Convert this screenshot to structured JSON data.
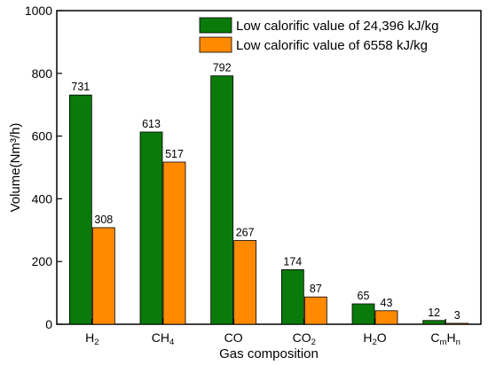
{
  "chart_data": {
    "type": "bar",
    "title": "",
    "xlabel": "Gas composition",
    "ylabel": "Volume(Nm³/h)",
    "ylim": [
      0,
      1000
    ],
    "yticks": [
      0,
      200,
      400,
      600,
      800,
      1000
    ],
    "categories": [
      {
        "main": "H",
        "sub": "2"
      },
      {
        "main": "CH",
        "sub": "4"
      },
      {
        "main": "CO",
        "sub": ""
      },
      {
        "main": "CO",
        "sub": "2"
      },
      {
        "main": "H",
        "sub": "2",
        "main2": "O"
      },
      {
        "main": "C",
        "sub": "m",
        "main2": "H",
        "sub2": "n"
      }
    ],
    "series": [
      {
        "name": "Low calorific value of 24,396 kJ/kg",
        "color": "#0a7a0a",
        "values": [
          731,
          613,
          792,
          174,
          65,
          12
        ]
      },
      {
        "name": "Low calorific value of 6558 kJ/kg",
        "color": "#ff8a00",
        "values": [
          308,
          517,
          267,
          87,
          43,
          3
        ]
      }
    ],
    "legend_position": "top-right",
    "grid": false
  }
}
